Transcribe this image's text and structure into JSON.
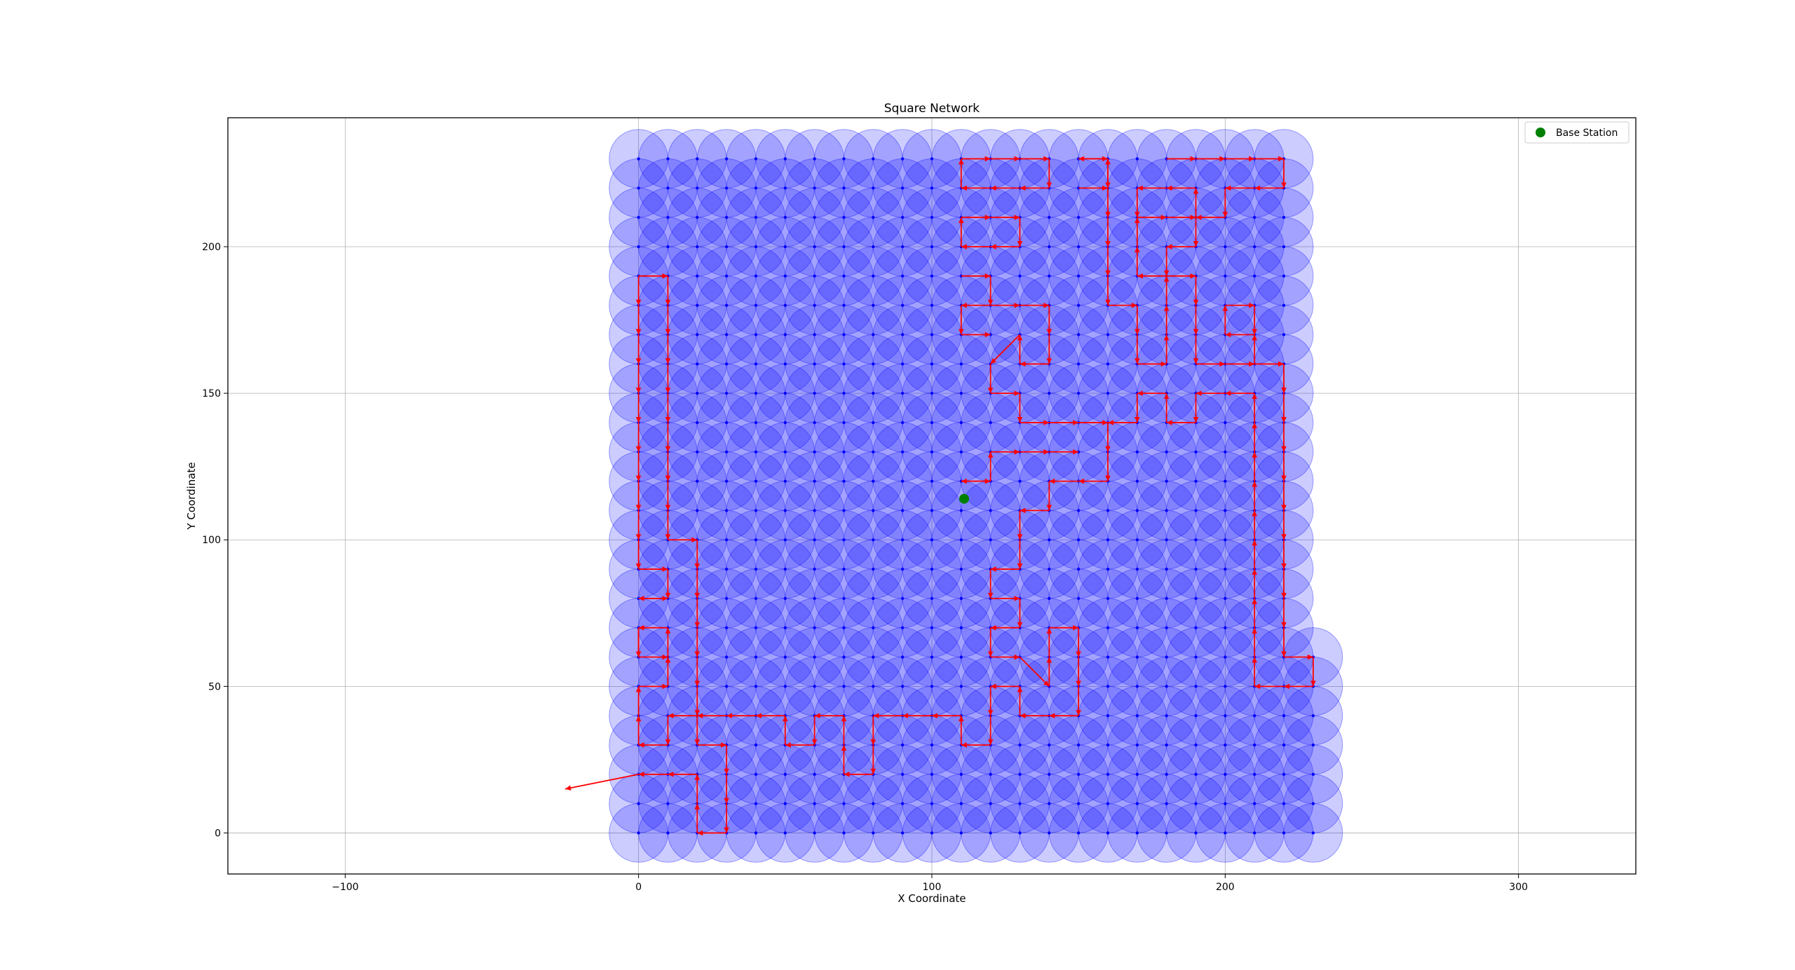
{
  "chart_data": {
    "type": "scatter",
    "title": "Square Network",
    "xlabel": "X Coordinate",
    "ylabel": "Y Coordinate",
    "xlim": [
      -140,
      340
    ],
    "ylim": [
      -14,
      244
    ],
    "xticks": [
      -100,
      0,
      100,
      200,
      300
    ],
    "yticks": [
      0,
      50,
      100,
      150,
      200
    ],
    "xtick_labels": [
      "−100",
      "0",
      "100",
      "200",
      "300"
    ],
    "ytick_labels": [
      "0",
      "50",
      "100",
      "150",
      "200"
    ],
    "grid": true,
    "legend": {
      "placement": "top-right",
      "entries": [
        {
          "label": "Base Station",
          "color": "#008000",
          "marker": "circle"
        }
      ]
    },
    "nodes": {
      "description_color": "#0000ff",
      "x_start": 0,
      "x_end": 220,
      "y_start": 0,
      "y_end": 230,
      "spacing": 10,
      "extra": [
        [
          230,
          0
        ],
        [
          230,
          10
        ],
        [
          230,
          20
        ],
        [
          230,
          30
        ],
        [
          230,
          40
        ],
        [
          230,
          50
        ],
        [
          230,
          60
        ]
      ],
      "coverage_radius": 10,
      "coverage_color": "#0000ff",
      "coverage_opacity": 0.2
    },
    "base_station": {
      "x": 111,
      "y": 114,
      "color": "#008000"
    },
    "route_color": "#ff0000",
    "routes": [
      [
        [
          110,
          230
        ],
        [
          120,
          230
        ],
        [
          130,
          230
        ],
        [
          140,
          230
        ],
        [
          140,
          220
        ],
        [
          130,
          220
        ],
        [
          120,
          220
        ],
        [
          110,
          220
        ],
        [
          110,
          230
        ]
      ],
      [
        [
          110,
          210
        ],
        [
          120,
          210
        ],
        [
          130,
          210
        ],
        [
          130,
          200
        ],
        [
          120,
          200
        ],
        [
          110,
          200
        ],
        [
          110,
          210
        ]
      ],
      [
        [
          110,
          190
        ],
        [
          120,
          190
        ],
        [
          120,
          180
        ],
        [
          110,
          180
        ],
        [
          110,
          170
        ],
        [
          120,
          170
        ]
      ],
      [
        [
          120,
          180
        ],
        [
          130,
          180
        ],
        [
          140,
          180
        ],
        [
          140,
          170
        ],
        [
          140,
          160
        ],
        [
          130,
          160
        ],
        [
          130,
          170
        ],
        [
          120,
          160
        ],
        [
          120,
          150
        ],
        [
          130,
          150
        ],
        [
          130,
          140
        ],
        [
          140,
          140
        ],
        [
          150,
          140
        ],
        [
          160,
          140
        ],
        [
          160,
          130
        ]
      ],
      [
        [
          150,
          220
        ],
        [
          160,
          220
        ],
        [
          160,
          230
        ],
        [
          150,
          230
        ],
        [
          160,
          230
        ],
        [
          160,
          220
        ],
        [
          160,
          210
        ],
        [
          160,
          200
        ],
        [
          160,
          190
        ],
        [
          160,
          180
        ],
        [
          170,
          180
        ],
        [
          170,
          170
        ],
        [
          170,
          160
        ],
        [
          180,
          160
        ],
        [
          180,
          170
        ],
        [
          180,
          180
        ],
        [
          180,
          190
        ],
        [
          170,
          190
        ],
        [
          170,
          200
        ],
        [
          170,
          210
        ],
        [
          180,
          210
        ],
        [
          190,
          210
        ],
        [
          190,
          220
        ],
        [
          180,
          220
        ],
        [
          170,
          220
        ],
        [
          170,
          210
        ]
      ],
      [
        [
          180,
          230
        ],
        [
          190,
          230
        ],
        [
          200,
          230
        ],
        [
          210,
          230
        ],
        [
          220,
          230
        ],
        [
          220,
          220
        ],
        [
          210,
          220
        ],
        [
          200,
          220
        ],
        [
          200,
          210
        ],
        [
          190,
          210
        ],
        [
          190,
          200
        ],
        [
          180,
          200
        ],
        [
          180,
          190
        ],
        [
          190,
          190
        ],
        [
          190,
          180
        ],
        [
          190,
          170
        ],
        [
          190,
          160
        ],
        [
          200,
          160
        ],
        [
          210,
          160
        ],
        [
          210,
          170
        ],
        [
          200,
          170
        ],
        [
          200,
          180
        ],
        [
          210,
          180
        ],
        [
          210,
          170
        ]
      ],
      [
        [
          210,
          160
        ],
        [
          220,
          160
        ],
        [
          220,
          150
        ],
        [
          220,
          140
        ],
        [
          220,
          130
        ],
        [
          220,
          120
        ],
        [
          220,
          110
        ],
        [
          220,
          100
        ],
        [
          220,
          90
        ],
        [
          220,
          80
        ],
        [
          220,
          70
        ],
        [
          220,
          60
        ],
        [
          230,
          60
        ],
        [
          230,
          50
        ],
        [
          220,
          50
        ],
        [
          210,
          50
        ],
        [
          210,
          60
        ],
        [
          210,
          70
        ],
        [
          210,
          80
        ],
        [
          210,
          90
        ],
        [
          210,
          100
        ],
        [
          210,
          110
        ],
        [
          210,
          120
        ],
        [
          210,
          130
        ],
        [
          210,
          140
        ],
        [
          210,
          150
        ],
        [
          200,
          150
        ],
        [
          190,
          150
        ],
        [
          190,
          140
        ],
        [
          180,
          140
        ],
        [
          180,
          150
        ],
        [
          170,
          150
        ],
        [
          170,
          140
        ],
        [
          160,
          140
        ]
      ],
      [
        [
          160,
          130
        ],
        [
          160,
          120
        ],
        [
          150,
          120
        ],
        [
          140,
          120
        ],
        [
          140,
          110
        ],
        [
          130,
          110
        ],
        [
          130,
          100
        ],
        [
          130,
          90
        ],
        [
          120,
          90
        ],
        [
          120,
          80
        ],
        [
          130,
          80
        ],
        [
          130,
          70
        ],
        [
          120,
          70
        ],
        [
          120,
          60
        ],
        [
          130,
          60
        ],
        [
          140,
          50
        ],
        [
          140,
          60
        ],
        [
          140,
          70
        ],
        [
          150,
          70
        ],
        [
          150,
          60
        ],
        [
          150,
          50
        ],
        [
          150,
          40
        ],
        [
          140,
          40
        ],
        [
          130,
          40
        ],
        [
          130,
          50
        ],
        [
          120,
          50
        ],
        [
          120,
          40
        ],
        [
          120,
          30
        ],
        [
          110,
          30
        ],
        [
          110,
          40
        ],
        [
          100,
          40
        ],
        [
          90,
          40
        ],
        [
          80,
          40
        ],
        [
          80,
          30
        ],
        [
          80,
          20
        ],
        [
          70,
          20
        ],
        [
          70,
          30
        ],
        [
          70,
          40
        ],
        [
          60,
          40
        ],
        [
          60,
          30
        ],
        [
          50,
          30
        ],
        [
          50,
          40
        ],
        [
          40,
          40
        ],
        [
          30,
          40
        ],
        [
          20,
          40
        ],
        [
          10,
          40
        ],
        [
          10,
          30
        ],
        [
          0,
          30
        ],
        [
          0,
          40
        ],
        [
          0,
          50
        ],
        [
          10,
          50
        ],
        [
          10,
          60
        ],
        [
          10,
          70
        ],
        [
          0,
          70
        ],
        [
          0,
          60
        ]
      ],
      [
        [
          120,
          120
        ],
        [
          110,
          120
        ],
        [
          120,
          120
        ],
        [
          120,
          130
        ],
        [
          130,
          130
        ],
        [
          140,
          130
        ],
        [
          150,
          130
        ]
      ],
      [
        [
          0,
          190
        ],
        [
          10,
          190
        ],
        [
          10,
          180
        ],
        [
          10,
          170
        ],
        [
          10,
          160
        ],
        [
          10,
          150
        ],
        [
          10,
          140
        ],
        [
          10,
          130
        ],
        [
          10,
          120
        ],
        [
          10,
          110
        ],
        [
          10,
          100
        ],
        [
          20,
          100
        ],
        [
          20,
          90
        ],
        [
          20,
          80
        ],
        [
          20,
          70
        ],
        [
          20,
          60
        ],
        [
          20,
          50
        ],
        [
          20,
          40
        ],
        [
          20,
          30
        ],
        [
          30,
          30
        ],
        [
          30,
          20
        ],
        [
          30,
          10
        ],
        [
          30,
          0
        ],
        [
          20,
          0
        ],
        [
          20,
          10
        ],
        [
          20,
          20
        ],
        [
          10,
          20
        ],
        [
          0,
          20
        ],
        [
          -25,
          15
        ]
      ],
      [
        [
          0,
          190
        ],
        [
          0,
          180
        ],
        [
          0,
          170
        ],
        [
          0,
          160
        ],
        [
          0,
          150
        ],
        [
          0,
          140
        ],
        [
          0,
          130
        ],
        [
          0,
          120
        ],
        [
          0,
          110
        ],
        [
          0,
          100
        ],
        [
          0,
          90
        ],
        [
          10,
          90
        ],
        [
          10,
          80
        ],
        [
          0,
          80
        ],
        [
          10,
          80
        ]
      ],
      [
        [
          0,
          70
        ],
        [
          0,
          60
        ],
        [
          10,
          60
        ]
      ]
    ]
  }
}
